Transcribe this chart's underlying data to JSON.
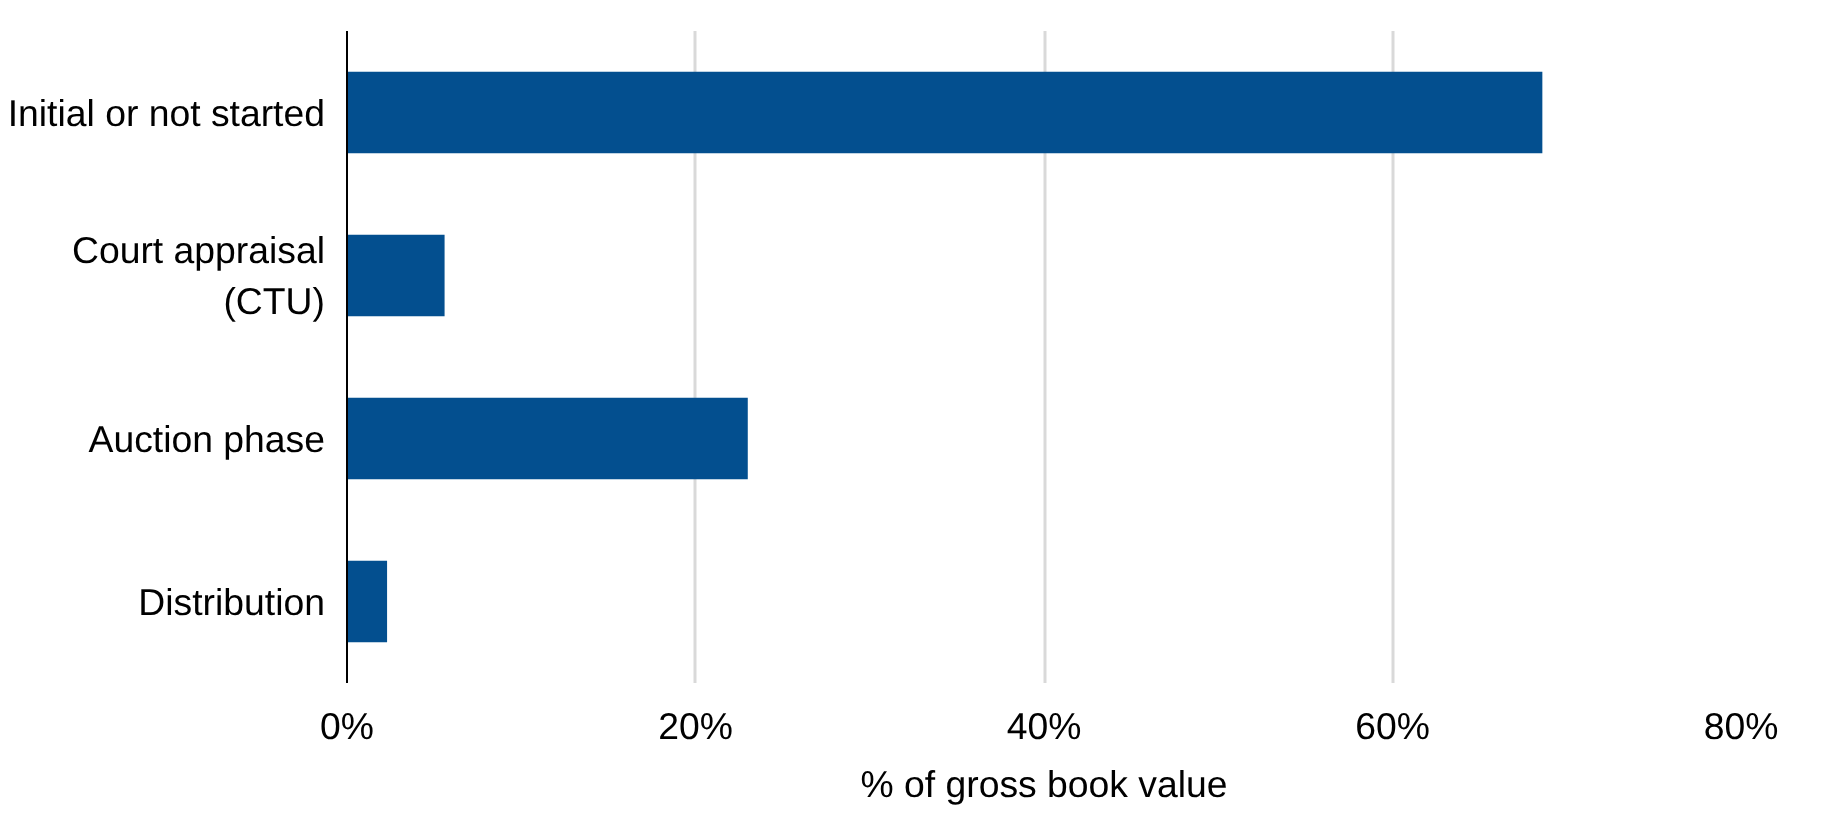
{
  "chart_data": {
    "type": "bar",
    "orientation": "horizontal",
    "xlabel": "% of gross book value",
    "categories": [
      "Initial or not started",
      "Court appraisal\n(CTU)",
      "Auction phase",
      "Distribution"
    ],
    "values": [
      68.6,
      5.6,
      23.0,
      2.3
    ],
    "color": "#034f8f",
    "xlim": [
      0,
      80
    ],
    "xticks": [
      {
        "value": 0,
        "label": "0%"
      },
      {
        "value": 20,
        "label": "20%"
      },
      {
        "value": 40,
        "label": "40%"
      },
      {
        "value": 60,
        "label": "60%"
      },
      {
        "value": 80,
        "label": "80%"
      }
    ],
    "grid": "x"
  }
}
